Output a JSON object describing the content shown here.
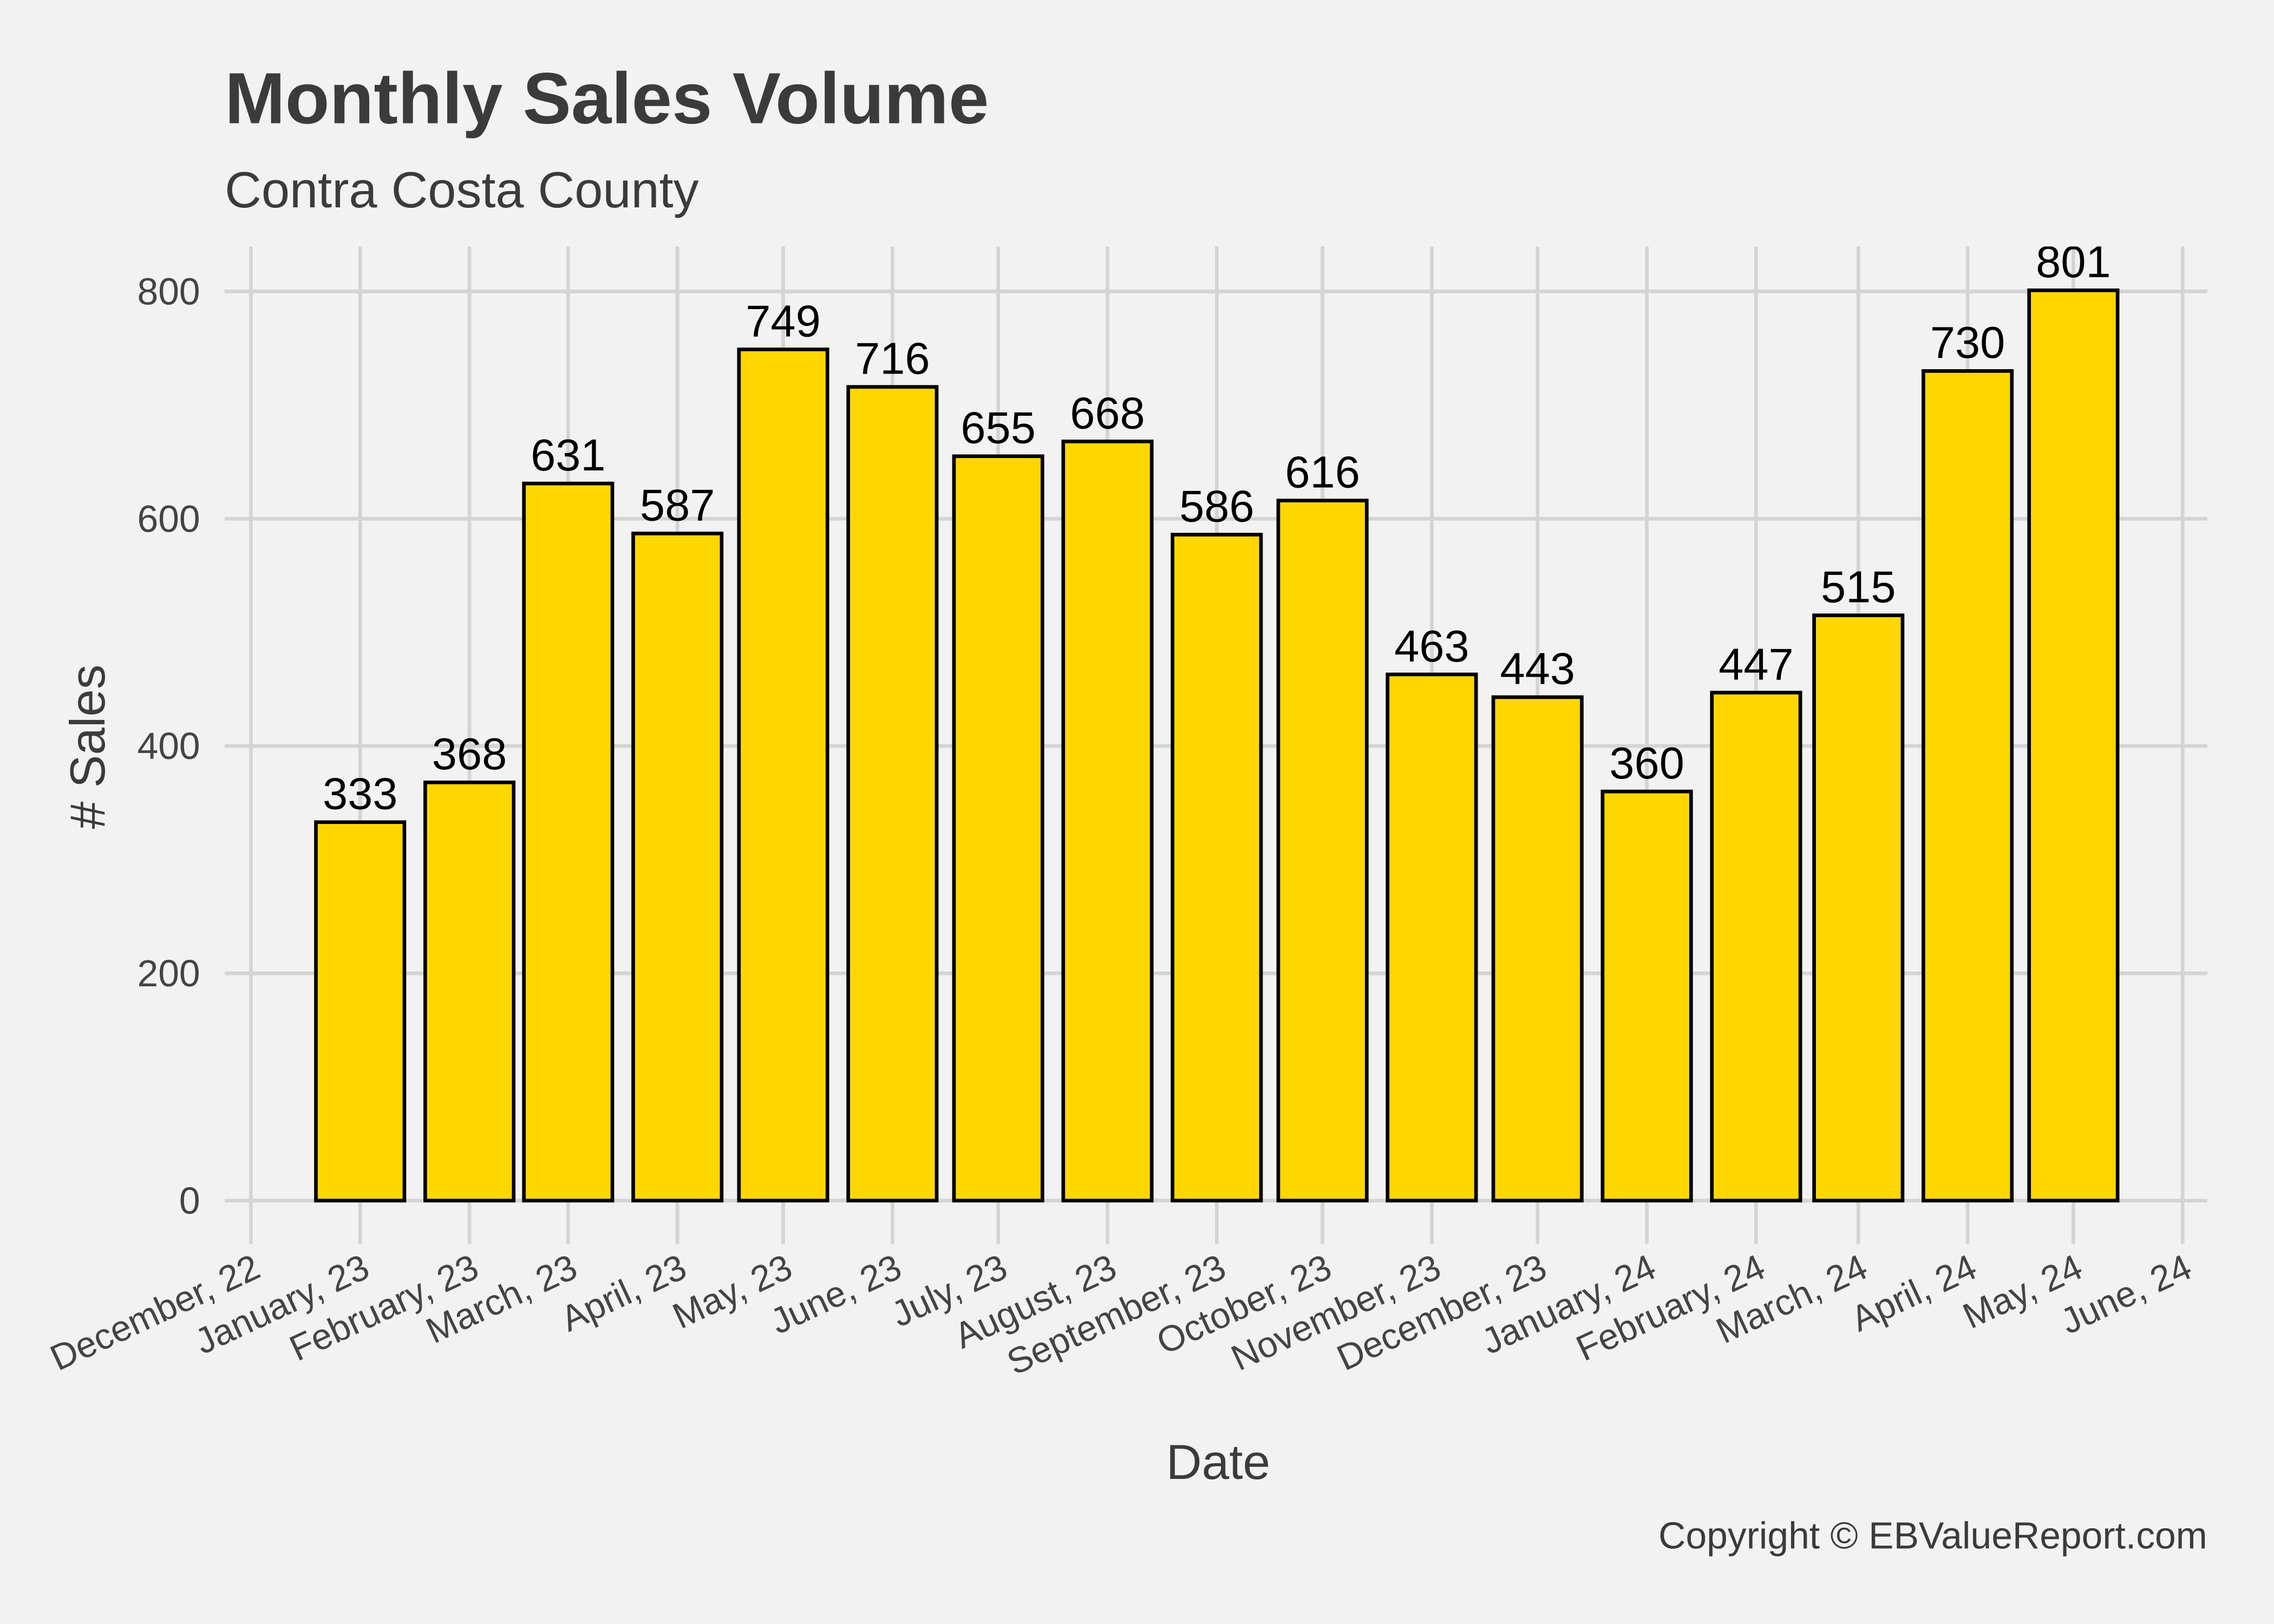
{
  "chart_data": {
    "type": "bar",
    "title": "Monthly Sales Volume",
    "subtitle": "Contra Costa County",
    "xlabel": "Date",
    "ylabel": "# Sales",
    "caption": "Copyright  © EBValueReport.com",
    "ylim": [
      0,
      800
    ],
    "yticks": [
      "0",
      "200",
      "400",
      "600",
      "800"
    ],
    "xtick_labels": [
      "December, 22",
      "January, 23",
      "February, 23",
      "March, 23",
      "April, 23",
      "May, 23",
      "June, 23",
      "July, 23",
      "August, 23",
      "September, 23",
      "October, 23",
      "November, 23",
      "December, 23",
      "January, 24",
      "February, 24",
      "March, 24",
      "April, 24",
      "May, 24",
      "June, 24"
    ],
    "categories": [
      "January, 23",
      "February, 23",
      "March, 23",
      "April, 23",
      "May, 23",
      "June, 23",
      "July, 23",
      "August, 23",
      "September, 23",
      "October, 23",
      "November, 23",
      "December, 23",
      "January, 24",
      "February, 24",
      "March, 24",
      "April, 24",
      "May, 24"
    ],
    "values": [
      333,
      368,
      631,
      587,
      749,
      716,
      655,
      668,
      586,
      616,
      463,
      443,
      360,
      447,
      515,
      730,
      801
    ],
    "grid": true,
    "colors": {
      "bar_fill": "#FFD700",
      "bar_outline": "#000000",
      "background": "#f2f2f2"
    }
  }
}
